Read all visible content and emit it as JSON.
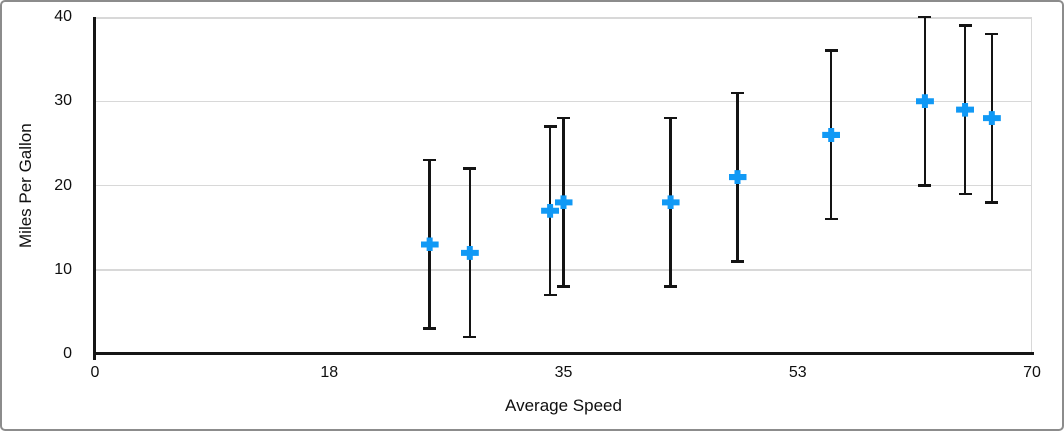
{
  "chart_data": {
    "type": "scatter",
    "title": "",
    "xlabel": "Average Speed",
    "ylabel": "Miles Per Gallon",
    "xlim": [
      0,
      70
    ],
    "ylim": [
      0,
      40
    ],
    "grid": "horizontal gridlines at each y tick, plus right plot border line",
    "legend": "none",
    "xticks": [
      {
        "value": 0,
        "label": "0"
      },
      {
        "value": 17.5,
        "label": "18"
      },
      {
        "value": 35,
        "label": "35"
      },
      {
        "value": 52.5,
        "label": "53"
      },
      {
        "value": 70,
        "label": "70"
      }
    ],
    "yticks": [
      {
        "value": 0,
        "label": "0"
      },
      {
        "value": 10,
        "label": "10"
      },
      {
        "value": 20,
        "label": "20"
      },
      {
        "value": 30,
        "label": "30"
      },
      {
        "value": 40,
        "label": "40"
      }
    ],
    "series": [
      {
        "name": "Miles Per Gallon",
        "marker": "plus",
        "marker_color": "#1199F5",
        "error_bars": {
          "type": "fixed",
          "plus": 10,
          "minus": 10,
          "color": "#141414"
        },
        "points": [
          {
            "x": 25,
            "y": 13
          },
          {
            "x": 28,
            "y": 12
          },
          {
            "x": 34,
            "y": 17
          },
          {
            "x": 35,
            "y": 18
          },
          {
            "x": 43,
            "y": 18
          },
          {
            "x": 48,
            "y": 21
          },
          {
            "x": 55,
            "y": 26
          },
          {
            "x": 62,
            "y": 30
          },
          {
            "x": 65,
            "y": 29
          },
          {
            "x": 67,
            "y": 28
          }
        ]
      }
    ],
    "colors": {
      "marker": "#1199F5",
      "axis": "#161616",
      "gridline": "#d8d8d8",
      "error_bar": "#141414",
      "background": "#ffffff",
      "frame_border": "#8c8c8c",
      "text": "#0f0f0f"
    }
  }
}
